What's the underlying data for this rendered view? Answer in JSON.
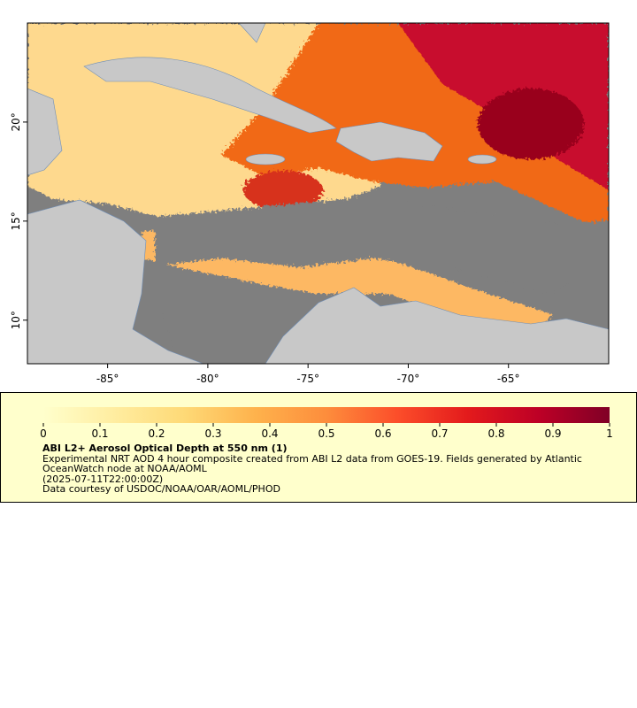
{
  "map": {
    "xlim": [
      -89,
      -60
    ],
    "ylim": [
      7.8,
      25
    ],
    "xticks": [
      {
        "value": -85,
        "label": "-85°"
      },
      {
        "value": -80,
        "label": "-80°"
      },
      {
        "value": -75,
        "label": "-75°"
      },
      {
        "value": -70,
        "label": "-70°"
      },
      {
        "value": -65,
        "label": "-65°"
      }
    ],
    "yticks": [
      {
        "value": 10,
        "label": "10°"
      },
      {
        "value": 15,
        "label": "15°"
      },
      {
        "value": 20,
        "label": "20°"
      }
    ]
  },
  "legend": {
    "colorbar": {
      "lim": [
        0,
        1
      ],
      "ticks": [
        0,
        0.1,
        0.2,
        0.3,
        0.4,
        0.5,
        0.6,
        0.7,
        0.8,
        0.9,
        1
      ],
      "colors": [
        "#ffffcc",
        "#ffeda0",
        "#fed976",
        "#feb24c",
        "#fd8d3c",
        "#fc4e2a",
        "#e31a1c",
        "#bd0026",
        "#800026"
      ]
    },
    "title": "ABI L2+ Aerosol Optical Depth at 550 nm (1)",
    "description": "Experimental NRT AOD 4 hour composite created from ABI L2 data from GOES-19. Fields generated by Atlantic OceanWatch node at NOAA/AOML",
    "time": "(2025-07-11T22:00:00Z)",
    "credit": "Data courtesy of USDOC/NOAA/OAR/AOML/PHOD"
  }
}
